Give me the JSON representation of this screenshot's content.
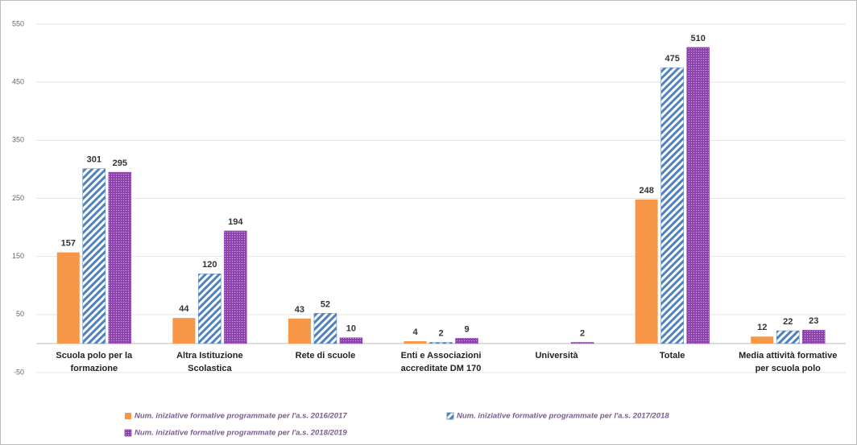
{
  "chart_data": {
    "type": "bar",
    "categories": [
      "Scuola polo per la formazione",
      "Altra Istituzione Scolastica",
      "Rete di scuole",
      "Enti e Associazioni accreditate DM 170",
      "Università",
      "Totale",
      "Media attività formative per scuola polo"
    ],
    "series": [
      {
        "name": "Num. iniziative formative programmate per l'a.s. 2016/2017",
        "color": "#f79646",
        "pattern": "solid",
        "values": [
          157,
          44,
          43,
          4,
          null,
          248,
          12
        ]
      },
      {
        "name": "Num. iniziative formative programmate per l'a.s. 2017/2018",
        "color": "#4f81bd",
        "pattern": "hatch",
        "values": [
          301,
          120,
          52,
          2,
          null,
          475,
          22
        ]
      },
      {
        "name": "Num. iniziative formative programmate per l'a.s. 2018/2019",
        "color": "#8e44ad",
        "pattern": "dots",
        "values": [
          295,
          194,
          10,
          9,
          2,
          510,
          23
        ]
      }
    ],
    "ylim": [
      -50,
      550
    ],
    "yticks": [
      -50,
      50,
      150,
      250,
      350,
      450,
      550
    ],
    "grid": true
  }
}
